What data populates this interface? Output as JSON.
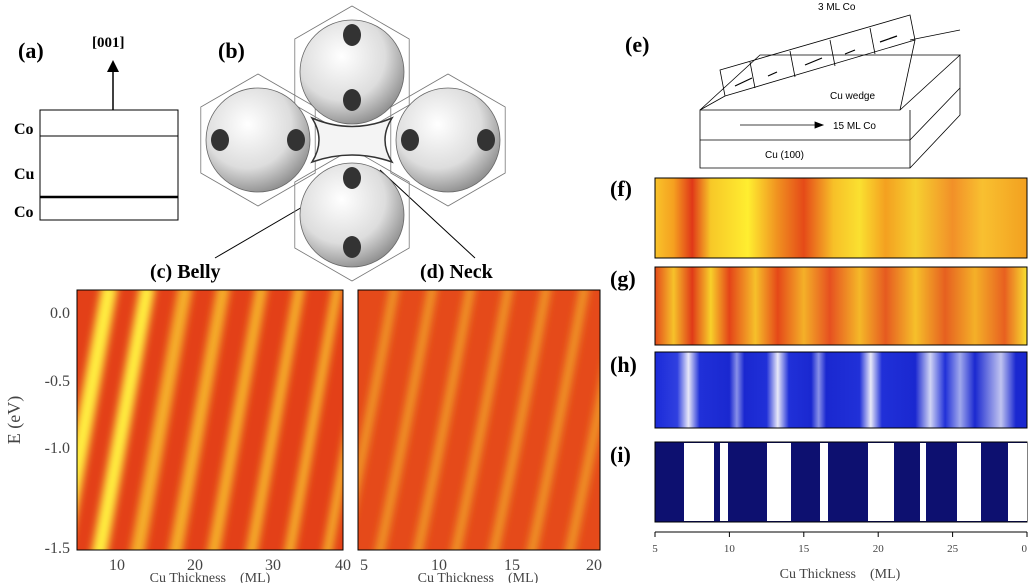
{
  "panel_a": {
    "label": "(a)",
    "direction": "[001]",
    "layers": [
      "Co",
      "Cu",
      "Co"
    ]
  },
  "panel_b": {
    "label": "(b)",
    "belly": "(c) Belly",
    "neck": "(d) Neck"
  },
  "panel_e": {
    "label": "(e)",
    "top_layer": "3 ML Co",
    "wedge": "Cu wedge",
    "bottom_layer": "15 ML Co",
    "substrate": "Cu (100)"
  },
  "panel_c": {
    "y_label": "E (eV)",
    "y_ticks": [
      "0.0",
      "-0.5",
      "-1.0",
      "-1.5"
    ],
    "x_ticks": [
      "10",
      "20",
      "30",
      "40"
    ],
    "x_label": "Cu Thickness    (ML)"
  },
  "panel_d": {
    "x_ticks": [
      "5",
      "10",
      "15",
      "20"
    ],
    "x_label": "Cu Thickness    (ML)"
  },
  "strips": {
    "labels": [
      "(f)",
      "(g)",
      "(h)",
      "(i)"
    ],
    "x_ticks": [
      "5",
      "10",
      "15",
      "20",
      "25",
      "0"
    ],
    "x_label": "Cu Thickness    (ML)"
  }
}
